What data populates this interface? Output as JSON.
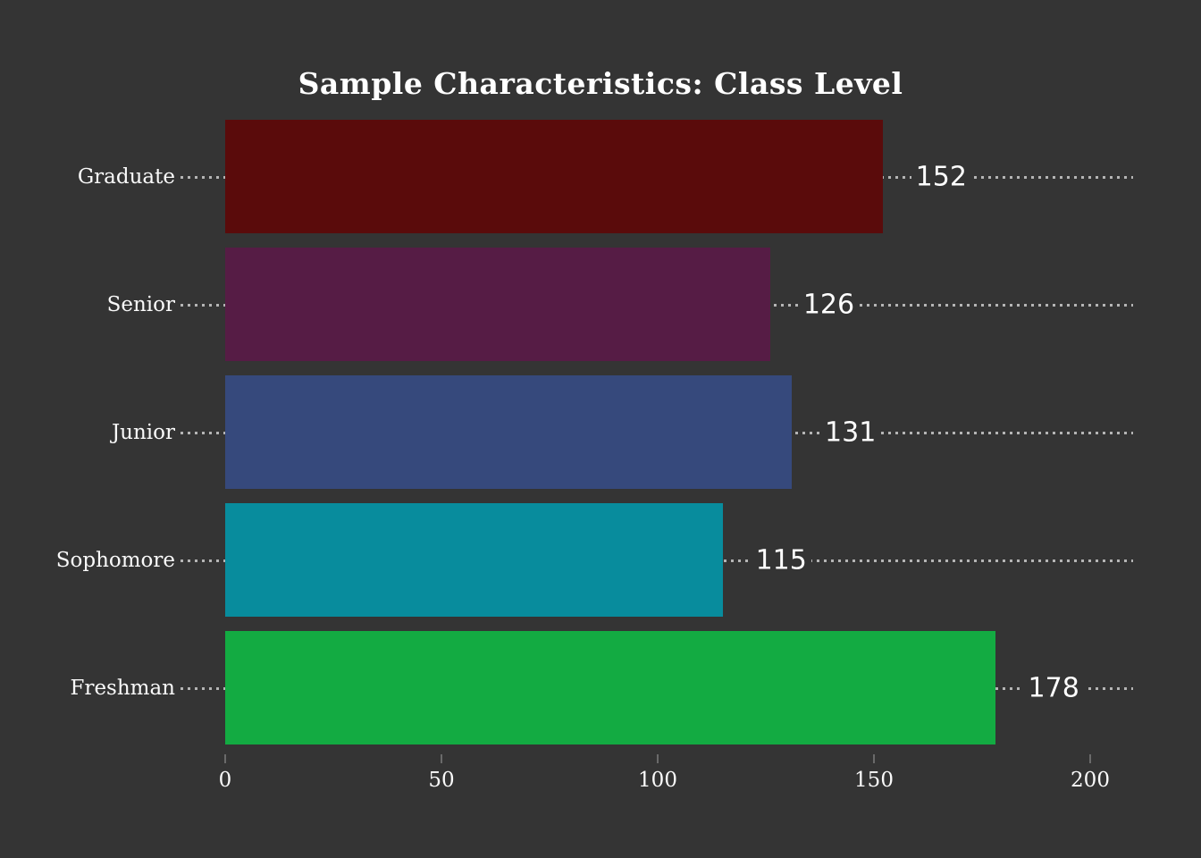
{
  "chart_data": {
    "type": "bar",
    "orientation": "horizontal",
    "title": "Sample Characteristics: Class Level",
    "categories": [
      "Graduate",
      "Senior",
      "Junior",
      "Sophomore",
      "Freshman"
    ],
    "values": [
      152,
      126,
      131,
      115,
      178
    ],
    "value_labels": [
      "152",
      "126",
      "131",
      "115",
      "178"
    ],
    "bar_colors": [
      "#5a0b0b",
      "#561c45",
      "#36497c",
      "#088c9d",
      "#13ab42"
    ],
    "xlabel": "",
    "ylabel": "",
    "xticks": [
      "0",
      "50",
      "100",
      "150",
      "200"
    ],
    "xtick_values": [
      0,
      50,
      100,
      150,
      200
    ],
    "xlim": [
      0,
      210
    ],
    "grid": "dotted leader lines per row",
    "legend": "none",
    "background": "#343434"
  },
  "colors": {
    "background": "#343434",
    "title_text": "#ffffff",
    "label_text": "#fafafa",
    "value_text": "#ffffff",
    "leader_dots": "#b5b5b5",
    "tick_mark": "#6a6a6a"
  }
}
